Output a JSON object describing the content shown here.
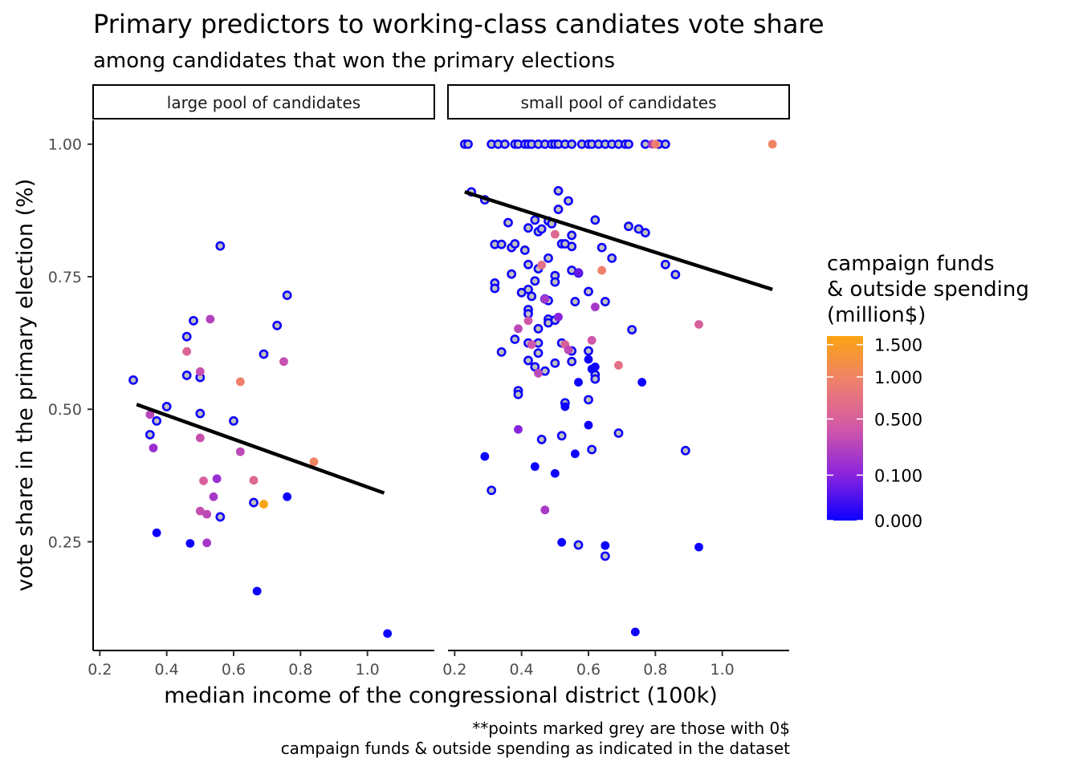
{
  "title": "Primary predictors to working-class candiates vote share",
  "subtitle": "among candidates that won the primary elections",
  "caption": {
    "line1": "**points marked grey are those with 0$",
    "line2": "campaign funds & outside spending as indicated in the dataset"
  },
  "legend": {
    "title_line1": "campaign funds",
    "title_line2": "& outside spending",
    "title_line3": "(million$)",
    "labels": [
      "1.500",
      "1.000",
      "0.500",
      "0.100",
      "0.000"
    ],
    "label_values": [
      1.5,
      1.0,
      0.5,
      0.1,
      0.0
    ],
    "range": [
      0,
      1.65
    ],
    "scale": "sqrt",
    "colors": [
      "#0d00ff",
      "#8b24dc",
      "#d158a8",
      "#ee7f6e",
      "#fca512"
    ]
  },
  "chart_data": {
    "type": "scatter",
    "xlabel": "median income of the congressional district (100k)",
    "ylabel": "vote share in the primary election (%)",
    "xlim": [
      0.18,
      1.2
    ],
    "ylim": [
      0.045,
      1.045
    ],
    "x_ticks": [
      "0.2",
      "0.4",
      "0.6",
      "0.8",
      "1.0"
    ],
    "x_tick_values": [
      0.2,
      0.4,
      0.6,
      0.8,
      1.0
    ],
    "y_ticks": [
      "0.25",
      "0.50",
      "0.75",
      "1.00"
    ],
    "y_tick_values": [
      0.25,
      0.5,
      0.75,
      1.0
    ],
    "grid": false,
    "legend_placement": "right",
    "panels": [
      {
        "label": "large pool of candidates",
        "trend": {
          "x": [
            0.31,
            1.05
          ],
          "y": [
            0.509,
            0.342
          ]
        },
        "zero_points": [
          [
            0.3,
            0.555
          ],
          [
            0.4,
            0.505
          ],
          [
            0.37,
            0.478
          ],
          [
            0.35,
            0.452
          ],
          [
            0.46,
            0.637
          ],
          [
            0.46,
            0.564
          ],
          [
            0.48,
            0.667
          ],
          [
            0.5,
            0.56
          ],
          [
            0.5,
            0.492
          ],
          [
            0.56,
            0.808
          ],
          [
            0.6,
            0.478
          ],
          [
            0.56,
            0.297
          ],
          [
            0.66,
            0.324
          ],
          [
            0.69,
            0.604
          ],
          [
            0.73,
            0.658
          ],
          [
            0.76,
            0.715
          ]
        ],
        "funded_points": [
          [
            0.35,
            0.49,
            0.28
          ],
          [
            0.36,
            0.427,
            0.15
          ],
          [
            0.37,
            0.267,
            0.0
          ],
          [
            0.47,
            0.247,
            0.0
          ],
          [
            0.46,
            0.609,
            0.55
          ],
          [
            0.5,
            0.571,
            0.35
          ],
          [
            0.5,
            0.446,
            0.35
          ],
          [
            0.5,
            0.308,
            0.35
          ],
          [
            0.51,
            0.365,
            0.5
          ],
          [
            0.52,
            0.302,
            0.3
          ],
          [
            0.52,
            0.248,
            0.2
          ],
          [
            0.53,
            0.67,
            0.25
          ],
          [
            0.54,
            0.335,
            0.2
          ],
          [
            0.55,
            0.369,
            0.15
          ],
          [
            0.62,
            0.552,
            0.95
          ],
          [
            0.62,
            0.42,
            0.3
          ],
          [
            0.66,
            0.366,
            0.6
          ],
          [
            0.67,
            0.157,
            0.0
          ],
          [
            0.69,
            0.321,
            1.6
          ],
          [
            0.75,
            0.59,
            0.35
          ],
          [
            0.76,
            0.335,
            0.0
          ],
          [
            0.84,
            0.401,
            1.0
          ],
          [
            1.06,
            0.077,
            0.0
          ]
        ]
      },
      {
        "label": "small pool of candidates",
        "trend": {
          "x": [
            0.23,
            1.15
          ],
          "y": [
            0.91,
            0.726
          ]
        },
        "zero_points": [
          [
            0.23,
            1.0
          ],
          [
            0.24,
            1.0
          ],
          [
            0.31,
            1.0
          ],
          [
            0.33,
            1.0
          ],
          [
            0.35,
            1.0
          ],
          [
            0.38,
            1.0
          ],
          [
            0.39,
            1.0
          ],
          [
            0.41,
            1.0
          ],
          [
            0.42,
            1.0
          ],
          [
            0.43,
            1.0
          ],
          [
            0.45,
            1.0
          ],
          [
            0.47,
            1.0
          ],
          [
            0.49,
            1.0
          ],
          [
            0.5,
            1.0
          ],
          [
            0.51,
            1.0
          ],
          [
            0.53,
            1.0
          ],
          [
            0.55,
            1.0
          ],
          [
            0.58,
            1.0
          ],
          [
            0.6,
            1.0
          ],
          [
            0.61,
            1.0
          ],
          [
            0.63,
            1.0
          ],
          [
            0.65,
            1.0
          ],
          [
            0.67,
            1.0
          ],
          [
            0.69,
            1.0
          ],
          [
            0.71,
            1.0
          ],
          [
            0.72,
            1.0
          ],
          [
            0.77,
            1.0
          ],
          [
            0.81,
            1.0
          ],
          [
            0.83,
            1.0
          ],
          [
            0.25,
            0.91
          ],
          [
            0.29,
            0.895
          ],
          [
            0.36,
            0.852
          ],
          [
            0.42,
            0.842
          ],
          [
            0.44,
            0.857
          ],
          [
            0.45,
            0.835
          ],
          [
            0.46,
            0.84
          ],
          [
            0.48,
            0.855
          ],
          [
            0.49,
            0.85
          ],
          [
            0.52,
            0.812
          ],
          [
            0.51,
            0.912
          ],
          [
            0.54,
            0.893
          ],
          [
            0.51,
            0.877
          ],
          [
            0.62,
            0.857
          ],
          [
            0.32,
            0.811
          ],
          [
            0.34,
            0.811
          ],
          [
            0.37,
            0.805
          ],
          [
            0.38,
            0.812
          ],
          [
            0.41,
            0.8
          ],
          [
            0.48,
            0.785
          ],
          [
            0.55,
            0.828
          ],
          [
            0.55,
            0.807
          ],
          [
            0.53,
            0.812
          ],
          [
            0.64,
            0.805
          ],
          [
            0.67,
            0.785
          ],
          [
            0.72,
            0.845
          ],
          [
            0.75,
            0.84
          ],
          [
            0.77,
            0.833
          ],
          [
            0.83,
            0.773
          ],
          [
            0.86,
            0.754
          ],
          [
            0.32,
            0.738
          ],
          [
            0.32,
            0.728
          ],
          [
            0.37,
            0.755
          ],
          [
            0.4,
            0.72
          ],
          [
            0.42,
            0.773
          ],
          [
            0.42,
            0.726
          ],
          [
            0.44,
            0.742
          ],
          [
            0.45,
            0.765
          ],
          [
            0.47,
            0.708
          ],
          [
            0.48,
            0.705
          ],
          [
            0.43,
            0.713
          ],
          [
            0.5,
            0.752
          ],
          [
            0.5,
            0.74
          ],
          [
            0.55,
            0.762
          ],
          [
            0.57,
            0.757
          ],
          [
            0.6,
            0.722
          ],
          [
            0.56,
            0.703
          ],
          [
            0.65,
            0.703
          ],
          [
            0.42,
            0.688
          ],
          [
            0.42,
            0.68
          ],
          [
            0.45,
            0.652
          ],
          [
            0.48,
            0.67
          ],
          [
            0.48,
            0.663
          ],
          [
            0.5,
            0.668
          ],
          [
            0.34,
            0.608
          ],
          [
            0.38,
            0.632
          ],
          [
            0.42,
            0.625
          ],
          [
            0.45,
            0.625
          ],
          [
            0.42,
            0.592
          ],
          [
            0.45,
            0.606
          ],
          [
            0.44,
            0.58
          ],
          [
            0.47,
            0.572
          ],
          [
            0.5,
            0.587
          ],
          [
            0.52,
            0.625
          ],
          [
            0.55,
            0.61
          ],
          [
            0.55,
            0.59
          ],
          [
            0.6,
            0.61
          ],
          [
            0.62,
            0.565
          ],
          [
            0.62,
            0.557
          ],
          [
            0.39,
            0.535
          ],
          [
            0.39,
            0.528
          ],
          [
            0.53,
            0.512
          ],
          [
            0.6,
            0.518
          ],
          [
            0.73,
            0.65
          ],
          [
            0.46,
            0.443
          ],
          [
            0.52,
            0.45
          ],
          [
            0.61,
            0.424
          ],
          [
            0.69,
            0.455
          ],
          [
            0.89,
            0.422
          ],
          [
            0.31,
            0.347
          ],
          [
            0.57,
            0.244
          ],
          [
            0.65,
            0.223
          ]
        ],
        "funded_points": [
          [
            0.46,
            0.772,
            0.7
          ],
          [
            0.5,
            0.83,
            0.6
          ],
          [
            0.57,
            0.758,
            0.05
          ],
          [
            0.64,
            0.762,
            0.95
          ],
          [
            0.51,
            0.674,
            0.1
          ],
          [
            0.39,
            0.652,
            0.3
          ],
          [
            0.42,
            0.667,
            0.4
          ],
          [
            0.47,
            0.708,
            0.2
          ],
          [
            0.62,
            0.693,
            0.2
          ],
          [
            0.43,
            0.622,
            0.4
          ],
          [
            0.53,
            0.622,
            0.5
          ],
          [
            0.61,
            0.63,
            0.4
          ],
          [
            0.54,
            0.612,
            0.3
          ],
          [
            0.6,
            0.594,
            0.0
          ],
          [
            0.61,
            0.576,
            0.0
          ],
          [
            0.62,
            0.58,
            0.0
          ],
          [
            0.69,
            0.583,
            0.7
          ],
          [
            0.57,
            0.551,
            0.0
          ],
          [
            0.45,
            0.568,
            0.3
          ],
          [
            0.76,
            0.551,
            0.0
          ],
          [
            0.53,
            0.505,
            0.0
          ],
          [
            0.6,
            0.47,
            0.0
          ],
          [
            0.39,
            0.462,
            0.1
          ],
          [
            0.56,
            0.416,
            0.0
          ],
          [
            0.29,
            0.411,
            0.0
          ],
          [
            0.44,
            0.392,
            0.0
          ],
          [
            0.5,
            0.379,
            0.0
          ],
          [
            0.47,
            0.31,
            0.2
          ],
          [
            0.52,
            0.249,
            0.0
          ],
          [
            0.65,
            0.243,
            0.0
          ],
          [
            0.93,
            0.24,
            0.0
          ],
          [
            0.74,
            0.08,
            0.0
          ],
          [
            0.93,
            0.66,
            0.5
          ],
          [
            0.79,
            1.0,
            0.2
          ],
          [
            0.8,
            1.0,
            0.9
          ],
          [
            1.15,
            1.0,
            1.0
          ]
        ]
      }
    ]
  }
}
